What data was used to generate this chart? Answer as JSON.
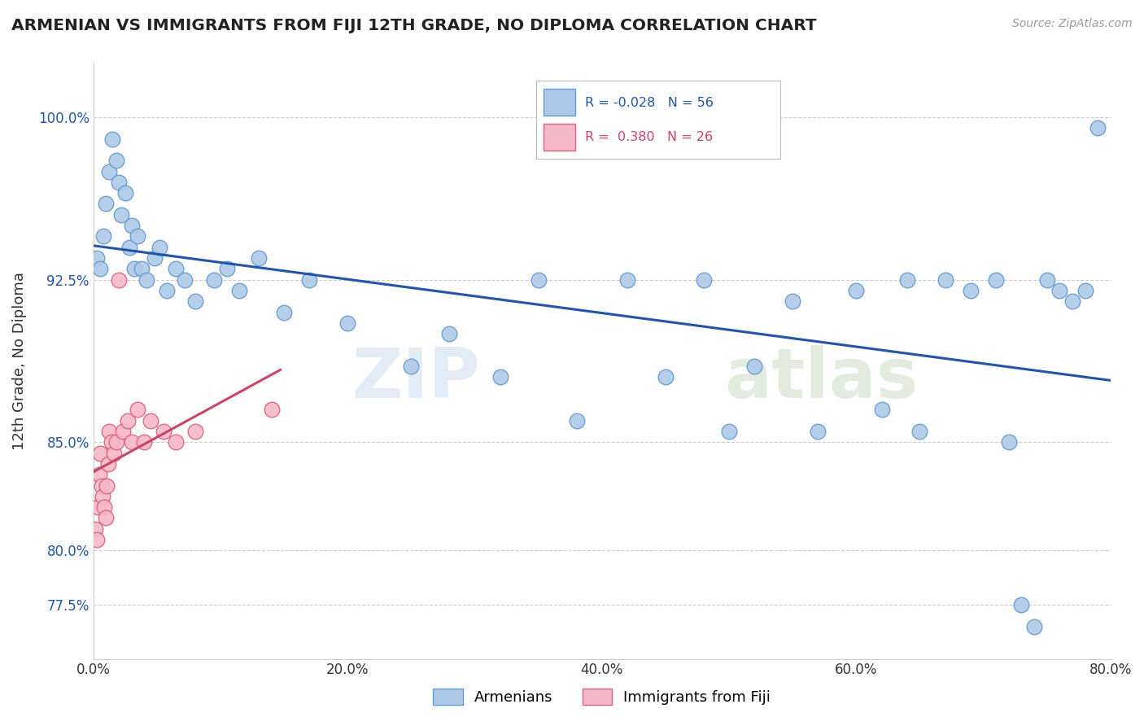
{
  "title": "ARMENIAN VS IMMIGRANTS FROM FIJI 12TH GRADE, NO DIPLOMA CORRELATION CHART",
  "source": "Source: ZipAtlas.com",
  "ylabel": "12th Grade, No Diploma",
  "xlim": [
    0.0,
    80.0
  ],
  "ylim": [
    75.0,
    102.5
  ],
  "yticks": [
    77.5,
    80.0,
    85.0,
    92.5,
    100.0
  ],
  "ytick_labels": [
    "77.5%",
    "80.0%",
    "85.0%",
    "92.5%",
    "100.0%"
  ],
  "xticks": [
    0.0,
    20.0,
    40.0,
    60.0,
    80.0
  ],
  "xtick_labels": [
    "0.0%",
    "20.0%",
    "40.0%",
    "60.0%",
    "80.0%"
  ],
  "armenians_x": [
    0.3,
    0.5,
    0.8,
    1.0,
    1.2,
    1.5,
    1.8,
    2.0,
    2.2,
    2.5,
    2.8,
    3.0,
    3.2,
    3.5,
    3.8,
    4.2,
    4.8,
    5.2,
    5.8,
    6.5,
    7.2,
    8.0,
    9.5,
    10.5,
    11.5,
    13.0,
    15.0,
    17.0,
    20.0,
    25.0,
    28.0,
    32.0,
    35.0,
    38.0,
    42.0,
    45.0,
    48.0,
    50.0,
    52.0,
    55.0,
    57.0,
    60.0,
    62.0,
    64.0,
    65.0,
    67.0,
    69.0,
    71.0,
    72.0,
    73.0,
    74.0,
    75.0,
    76.0,
    77.0,
    78.0,
    79.0
  ],
  "armenians_y": [
    93.5,
    93.0,
    94.5,
    96.0,
    97.5,
    99.0,
    98.0,
    97.0,
    95.5,
    96.5,
    94.0,
    95.0,
    93.0,
    94.5,
    93.0,
    92.5,
    93.5,
    94.0,
    92.0,
    93.0,
    92.5,
    91.5,
    92.5,
    93.0,
    92.0,
    93.5,
    91.0,
    92.5,
    90.5,
    88.5,
    90.0,
    88.0,
    92.5,
    86.0,
    92.5,
    88.0,
    92.5,
    85.5,
    88.5,
    91.5,
    85.5,
    92.0,
    86.5,
    92.5,
    85.5,
    92.5,
    92.0,
    92.5,
    85.0,
    77.5,
    76.5,
    92.5,
    92.0,
    91.5,
    92.0,
    99.5
  ],
  "fiji_x": [
    0.15,
    0.25,
    0.35,
    0.45,
    0.55,
    0.65,
    0.75,
    0.85,
    0.95,
    1.05,
    1.15,
    1.25,
    1.4,
    1.6,
    1.8,
    2.0,
    2.3,
    2.7,
    3.0,
    3.5,
    4.0,
    4.5,
    5.5,
    6.5,
    8.0,
    14.0
  ],
  "fiji_y": [
    81.0,
    80.5,
    82.0,
    83.5,
    84.5,
    83.0,
    82.5,
    82.0,
    81.5,
    83.0,
    84.0,
    85.5,
    85.0,
    84.5,
    85.0,
    92.5,
    85.5,
    86.0,
    85.0,
    86.5,
    85.0,
    86.0,
    85.5,
    85.0,
    85.5,
    86.5
  ],
  "blue_color": "#adc9e8",
  "blue_edge": "#6699cc",
  "pink_color": "#f5b8c8",
  "pink_edge": "#d96080",
  "trend_blue": "#2255aa",
  "trend_pink": "#cc4466",
  "R_armenians": "-0.028",
  "N_armenians": "56",
  "R_fiji": "0.380",
  "N_fiji": "26",
  "legend_labels": [
    "Armenians",
    "Immigrants from Fiji"
  ],
  "watermark": "ZIPatlas",
  "background_color": "#ffffff",
  "grid_color": "#cccccc"
}
